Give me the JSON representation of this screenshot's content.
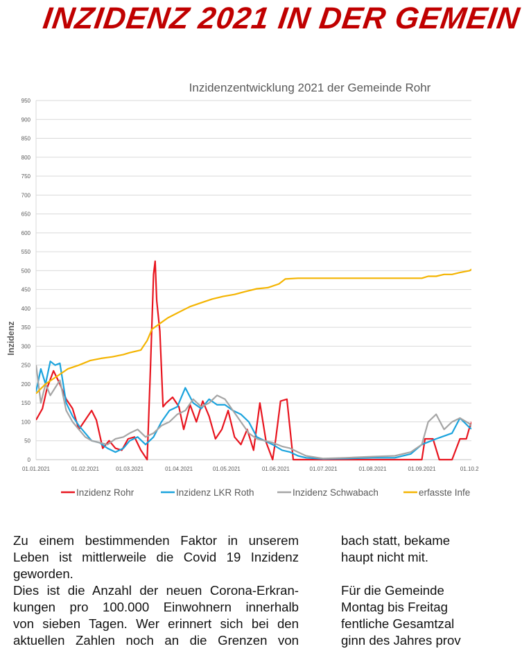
{
  "headline": "INZIDENZ 2021 IN DER GEMEIN",
  "chart_data": {
    "type": "line",
    "title": "Inzidenzentwicklung 2021 der Gemeinde Rohr",
    "ylabel": "Inzidenz",
    "xlabel": "",
    "ylim": [
      0,
      950
    ],
    "yticks": [
      "0",
      "50",
      "100",
      "150",
      "200",
      "250",
      "300",
      "350",
      "400",
      "450",
      "500",
      "550",
      "600",
      "650",
      "700",
      "750",
      "800",
      "850",
      "900",
      "950"
    ],
    "xticks": [
      "01.01.2021",
      "01.02.2021",
      "01.03.2021",
      "01.04.2021",
      "01.05.2021",
      "01.06.2021",
      "01.07.2021",
      "01.08.2021",
      "01.09.2021",
      "01.10.2"
    ],
    "grid": "horizontal",
    "legend_position": "bottom",
    "series": [
      {
        "name": "Inzidenz Rohr",
        "color": "#e8141e",
        "x": [
          "01.01.2021",
          "05.01.2021",
          "08.01.2021",
          "12.01.2021",
          "16.01.2021",
          "20.01.2021",
          "24.01.2021",
          "28.01.2021",
          "01.02.2021",
          "05.02.2021",
          "08.02.2021",
          "12.02.2021",
          "16.02.2021",
          "20.02.2021",
          "24.02.2021",
          "28.02.2021",
          "04.03.2021",
          "08.03.2021",
          "12.03.2021",
          "14.03.2021",
          "16.03.2021",
          "17.03.2021",
          "18.03.2021",
          "20.03.2021",
          "22.03.2021",
          "24.03.2021",
          "28.03.2021",
          "01.04.2021",
          "04.04.2021",
          "08.04.2021",
          "12.04.2021",
          "16.04.2021",
          "20.04.2021",
          "24.04.2021",
          "28.04.2021",
          "02.05.2021",
          "06.05.2021",
          "10.05.2021",
          "14.05.2021",
          "18.05.2021",
          "22.05.2021",
          "26.05.2021",
          "30.05.2021",
          "01.06.2021",
          "04.06.2021",
          "08.06.2021",
          "12.06.2021",
          "14.06.2021",
          "16.06.2021",
          "20.06.2021",
          "01.07.2021",
          "15.07.2021",
          "01.08.2021",
          "15.08.2021",
          "01.09.2021",
          "03.09.2021",
          "08.09.2021",
          "12.09.2021",
          "15.09.2021",
          "20.09.2021",
          "25.09.2021",
          "29.09.2021",
          "01.10.2021",
          "03.10.2021"
        ],
        "values": [
          105,
          135,
          190,
          235,
          200,
          160,
          135,
          80,
          105,
          130,
          105,
          30,
          50,
          30,
          25,
          55,
          60,
          25,
          0,
          235,
          490,
          525,
          420,
          340,
          140,
          150,
          165,
          140,
          80,
          145,
          100,
          155,
          115,
          55,
          80,
          130,
          60,
          40,
          80,
          25,
          150,
          45,
          0,
          55,
          155,
          160,
          0,
          0,
          0,
          0,
          0,
          0,
          0,
          0,
          0,
          55,
          55,
          0,
          0,
          0,
          55,
          55,
          85,
          105
        ]
      },
      {
        "name": "Inzidenz LKR Roth",
        "color": "#1aa3dd",
        "x": [
          "01.01.2021",
          "04.01.2021",
          "07.01.2021",
          "10.01.2021",
          "13.01.2021",
          "16.01.2021",
          "20.01.2021",
          "24.01.2021",
          "28.01.2021",
          "01.02.2021",
          "05.02.2021",
          "10.02.2021",
          "15.02.2021",
          "20.02.2021",
          "25.02.2021",
          "01.03.2021",
          "06.03.2021",
          "11.03.2021",
          "16.03.2021",
          "21.03.2021",
          "26.03.2021",
          "31.03.2021",
          "05.04.2021",
          "10.04.2021",
          "15.04.2021",
          "20.04.2021",
          "25.04.2021",
          "30.04.2021",
          "05.05.2021",
          "10.05.2021",
          "15.05.2021",
          "20.05.2021",
          "25.05.2021",
          "30.05.2021",
          "05.06.2021",
          "10.06.2021",
          "15.06.2021",
          "20.06.2021",
          "01.07.2021",
          "15.07.2021",
          "01.08.2021",
          "15.08.2021",
          "25.08.2021",
          "01.09.2021",
          "10.09.2021",
          "20.09.2021",
          "25.09.2021",
          "01.10.2021",
          "03.10.2021"
        ],
        "values": [
          180,
          240,
          200,
          260,
          250,
          255,
          150,
          115,
          90,
          70,
          50,
          45,
          30,
          20,
          30,
          50,
          60,
          40,
          60,
          100,
          130,
          140,
          190,
          150,
          135,
          160,
          145,
          145,
          130,
          120,
          100,
          60,
          50,
          40,
          25,
          20,
          10,
          5,
          2,
          3,
          5,
          5,
          15,
          40,
          55,
          70,
          110,
          85,
          80
        ]
      },
      {
        "name": "Inzidenz Schwabach",
        "color": "#a5a5a5",
        "x": [
          "01.01.2021",
          "04.01.2021",
          "07.01.2021",
          "10.01.2021",
          "13.01.2021",
          "16.01.2021",
          "20.01.2021",
          "24.01.2021",
          "28.01.2021",
          "01.02.2021",
          "05.02.2021",
          "10.02.2021",
          "15.02.2021",
          "20.02.2021",
          "25.02.2021",
          "01.03.2021",
          "06.03.2021",
          "11.03.2021",
          "16.03.2021",
          "21.03.2021",
          "26.03.2021",
          "31.03.2021",
          "05.04.2021",
          "10.04.2021",
          "15.04.2021",
          "20.04.2021",
          "25.04.2021",
          "30.04.2021",
          "05.05.2021",
          "10.05.2021",
          "15.05.2021",
          "20.05.2021",
          "25.05.2021",
          "30.05.2021",
          "05.06.2021",
          "10.06.2021",
          "15.06.2021",
          "20.06.2021",
          "01.07.2021",
          "15.07.2021",
          "01.08.2021",
          "15.08.2021",
          "25.08.2021",
          "01.09.2021",
          "05.09.2021",
          "10.09.2021",
          "15.09.2021",
          "20.09.2021",
          "25.09.2021",
          "01.10.2021",
          "03.10.2021"
        ],
        "values": [
          250,
          150,
          200,
          170,
          190,
          210,
          130,
          100,
          80,
          60,
          50,
          45,
          40,
          55,
          60,
          70,
          80,
          60,
          70,
          90,
          100,
          120,
          130,
          160,
          140,
          150,
          170,
          160,
          130,
          100,
          70,
          55,
          50,
          45,
          35,
          30,
          20,
          10,
          3,
          5,
          8,
          10,
          20,
          40,
          100,
          120,
          80,
          100,
          110,
          95,
          85
        ]
      },
      {
        "name": "erfasste Infe",
        "color": "#f4b400",
        "x": [
          "01.01.2021",
          "07.01.2021",
          "14.01.2021",
          "21.01.2021",
          "28.01.2021",
          "04.02.2021",
          "11.02.2021",
          "18.02.2021",
          "25.02.2021",
          "01.03.2021",
          "08.03.2021",
          "12.03.2021",
          "15.03.2021",
          "20.03.2021",
          "25.03.2021",
          "01.04.2021",
          "08.04.2021",
          "15.04.2021",
          "22.04.2021",
          "29.04.2021",
          "06.05.2021",
          "13.05.2021",
          "20.05.2021",
          "27.05.2021",
          "03.06.2021",
          "07.06.2021",
          "15.06.2021",
          "01.07.2021",
          "15.07.2021",
          "01.08.2021",
          "15.08.2021",
          "01.09.2021",
          "05.09.2021",
          "10.09.2021",
          "15.09.2021",
          "20.09.2021",
          "25.09.2021",
          "01.10.2021",
          "03.10.2021"
        ],
        "values": [
          175,
          200,
          220,
          240,
          250,
          262,
          268,
          272,
          278,
          283,
          290,
          315,
          345,
          360,
          375,
          390,
          405,
          415,
          425,
          432,
          437,
          445,
          452,
          455,
          465,
          478,
          480,
          480,
          480,
          480,
          480,
          480,
          485,
          485,
          490,
          490,
          495,
          500,
          505
        ]
      }
    ]
  }
}
